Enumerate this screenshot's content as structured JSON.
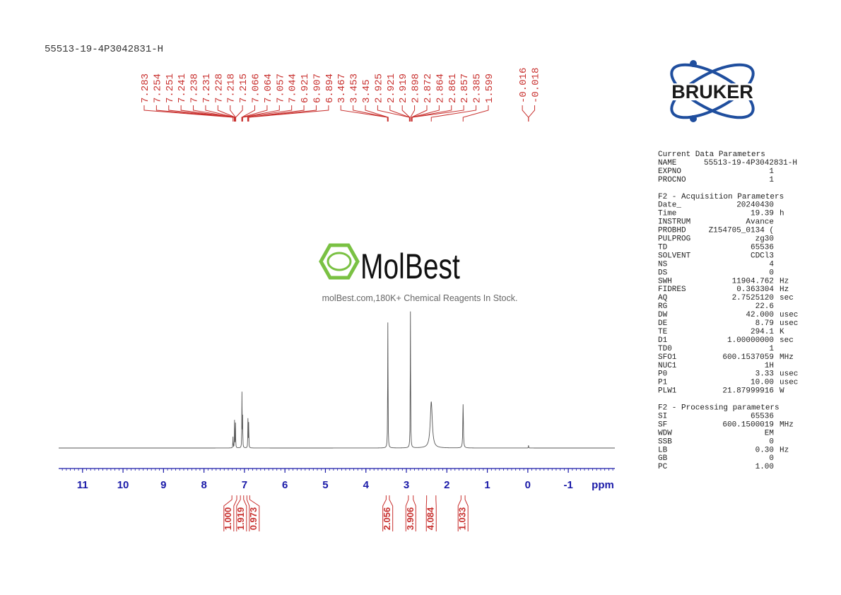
{
  "title": "55513-19-4P3042831-H",
  "watermark": {
    "brand": "MolBest",
    "tagline": "molBest.com,180K+ Chemical Reagents In Stock."
  },
  "logo": "BRUKER",
  "chart_data": {
    "type": "nmr",
    "xlabel": "ppm",
    "xlim": [
      11.59,
      -2.15
    ],
    "xticks": [
      11,
      10,
      9,
      8,
      7,
      6,
      5,
      4,
      3,
      2,
      1,
      0,
      -1
    ],
    "minor_tick_step": 0.1,
    "peaks": [
      7.283,
      7.254,
      7.251,
      7.241,
      7.238,
      7.231,
      7.228,
      7.218,
      7.215,
      7.066,
      7.064,
      7.057,
      7.044,
      6.921,
      6.907,
      6.894,
      3.467,
      3.453,
      3.45,
      2.925,
      2.921,
      2.919,
      2.898,
      2.872,
      2.864,
      2.861,
      2.857,
      2.385,
      1.599,
      -0.016,
      -0.018
    ],
    "signals": {
      "shift": [
        7.283,
        7.245,
        7.222,
        7.062,
        7.046,
        6.914,
        6.896,
        3.458,
        2.9,
        2.385,
        1.599,
        -0.017
      ],
      "height": [
        8,
        20,
        18,
        40,
        22,
        21,
        18,
        92,
        100,
        34,
        32,
        2
      ],
      "width": [
        0.004,
        0.004,
        0.004,
        0.004,
        0.004,
        0.004,
        0.004,
        0.005,
        0.005,
        0.03,
        0.008,
        0.004
      ]
    },
    "integrals": {
      "ranges": [
        [
          7.31,
          7.19
        ],
        [
          7.1,
          7.02
        ],
        [
          6.94,
          6.87
        ],
        [
          3.5,
          3.42
        ],
        [
          2.95,
          2.83
        ],
        [
          2.5,
          2.27
        ],
        [
          1.65,
          1.55
        ]
      ],
      "values": [
        1,
        1.919,
        0.973,
        2.056,
        3.906,
        4.084,
        1.033
      ],
      "value_labels": [
        "1.000",
        "1.919",
        "0.973",
        "2.056",
        "3.906",
        "4.084",
        "1.033"
      ]
    },
    "color": "#c8302e",
    "line_color": "#555555",
    "axis_color": "#1a1aa8"
  },
  "parameters": [
    {
      "title": "Current Data Parameters",
      "rows": [
        {
          "name": "NAME",
          "value": "55513-19-4P3042831-H"
        },
        {
          "name": "EXPNO",
          "value": "1"
        },
        {
          "name": "PROCNO",
          "value": "1"
        }
      ]
    },
    {
      "title": "F2 - Acquisition Parameters",
      "rows": [
        {
          "name": "Date_",
          "value": "20240430"
        },
        {
          "name": "Time",
          "value": "19.39",
          "unit": "h"
        },
        {
          "name": "INSTRUM",
          "value": "Avance"
        },
        {
          "name": "PROBHD",
          "value": "Z154705_0134 ("
        },
        {
          "name": "PULPROG",
          "value": "zg30"
        },
        {
          "name": "TD",
          "value": "65536"
        },
        {
          "name": "SOLVENT",
          "value": "CDCl3"
        },
        {
          "name": "NS",
          "value": "4"
        },
        {
          "name": "DS",
          "value": "0"
        },
        {
          "name": "SWH",
          "value": "11904.762",
          "unit": "Hz"
        },
        {
          "name": "FIDRES",
          "value": "0.363304",
          "unit": "Hz"
        },
        {
          "name": "AQ",
          "value": "2.7525120",
          "unit": "sec"
        },
        {
          "name": "RG",
          "value": "22.6"
        },
        {
          "name": "DW",
          "value": "42.000",
          "unit": "usec"
        },
        {
          "name": "DE",
          "value": "8.79",
          "unit": "usec"
        },
        {
          "name": "TE",
          "value": "294.1",
          "unit": "K"
        },
        {
          "name": "D1",
          "value": "1.00000000",
          "unit": "sec"
        },
        {
          "name": "TD0",
          "value": "1"
        },
        {
          "name": "SFO1",
          "value": "600.1537059",
          "unit": "MHz"
        },
        {
          "name": "NUC1",
          "value": "1H"
        },
        {
          "name": "P0",
          "value": "3.33",
          "unit": "usec"
        },
        {
          "name": "P1",
          "value": "10.00",
          "unit": "usec"
        },
        {
          "name": "PLW1",
          "value": "21.87999916",
          "unit": "W"
        }
      ]
    },
    {
      "title": "F2 - Processing parameters",
      "rows": [
        {
          "name": "SI",
          "value": "65536"
        },
        {
          "name": "SF",
          "value": "600.1500019",
          "unit": "MHz"
        },
        {
          "name": "WDW",
          "value": "EM"
        },
        {
          "name": "SSB",
          "value": "0"
        },
        {
          "name": "LB",
          "value": "0.30",
          "unit": "Hz"
        },
        {
          "name": "GB",
          "value": "0"
        },
        {
          "name": "PC",
          "value": "1.00"
        }
      ]
    }
  ]
}
